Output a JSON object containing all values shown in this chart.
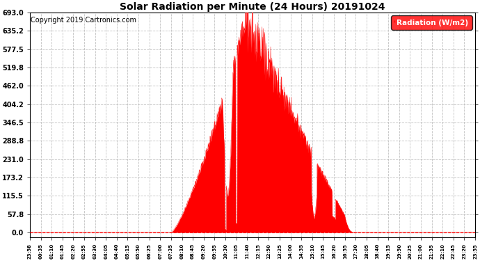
{
  "title": "Solar Radiation per Minute (24 Hours) 20191024",
  "copyright_text": "Copyright 2019 Cartronics.com",
  "legend_label": "Radiation (W/m2)",
  "fill_color": "#FF0000",
  "background_color": "#FFFFFF",
  "grid_color": "#BBBBBB",
  "dashed_zero_color": "#FF0000",
  "ytick_labels": [
    "0.0",
    "57.8",
    "115.5",
    "173.2",
    "231.0",
    "288.8",
    "346.5",
    "404.2",
    "462.0",
    "519.8",
    "577.5",
    "635.2",
    "693.0"
  ],
  "ytick_values": [
    0.0,
    57.8,
    115.5,
    173.2,
    231.0,
    288.8,
    346.5,
    404.2,
    462.0,
    519.8,
    577.5,
    635.2,
    693.0
  ],
  "ymax": 693.0,
  "ymin": -15.0,
  "xtick_labels": [
    "23:58",
    "00:35",
    "01:10",
    "01:45",
    "02:20",
    "02:55",
    "03:30",
    "04:05",
    "04:40",
    "05:15",
    "05:50",
    "06:25",
    "07:00",
    "07:35",
    "08:10",
    "08:45",
    "09:20",
    "09:55",
    "10:30",
    "11:05",
    "11:40",
    "12:15",
    "12:50",
    "13:25",
    "14:00",
    "14:35",
    "15:10",
    "15:45",
    "16:20",
    "16:55",
    "17:30",
    "18:05",
    "18:40",
    "19:15",
    "19:50",
    "20:25",
    "21:00",
    "21:35",
    "22:10",
    "22:45",
    "23:20",
    "23:55"
  ],
  "num_minutes": 1440,
  "legend_facecolor": "#FF0000",
  "legend_textcolor": "#FFFFFF",
  "title_fontsize": 10,
  "copyright_fontsize": 7,
  "ytick_fontsize": 7,
  "xtick_fontsize": 5
}
